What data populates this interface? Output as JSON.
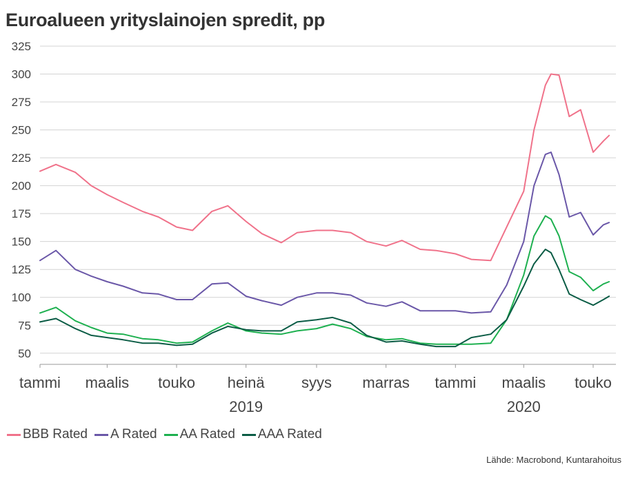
{
  "title": "Euroalueen yrityslainojen spredit, pp",
  "source": "Lähde: Macrobond, Kuntarahoitus",
  "chart_data": {
    "type": "line",
    "title": "Euroalueen yrityslainojen spredit, pp",
    "ylim": [
      40,
      325
    ],
    "yticks": [
      50,
      75,
      100,
      125,
      150,
      175,
      200,
      225,
      250,
      275,
      300,
      325
    ],
    "grid": true,
    "legend_position": "bottom-left",
    "x_tick_labels": [
      {
        "label": "tammi",
        "date": "2019-01"
      },
      {
        "label": "maalis",
        "date": "2019-03"
      },
      {
        "label": "touko",
        "date": "2019-05"
      },
      {
        "label": "heinä",
        "date": "2019-07"
      },
      {
        "label": "syys",
        "date": "2019-09"
      },
      {
        "label": "marras",
        "date": "2019-11"
      },
      {
        "label": "tammi",
        "date": "2020-01"
      },
      {
        "label": "maalis",
        "date": "2020-03"
      },
      {
        "label": "touko",
        "date": "2020-05"
      }
    ],
    "year_labels": [
      {
        "label": "2019",
        "date": "2019-07"
      },
      {
        "label": "2020",
        "date": "2020-03"
      }
    ],
    "x": [
      "2019-01-01",
      "2019-01-15",
      "2019-02-01",
      "2019-02-15",
      "2019-03-01",
      "2019-03-15",
      "2019-04-01",
      "2019-04-15",
      "2019-05-01",
      "2019-05-15",
      "2019-06-01",
      "2019-06-15",
      "2019-07-01",
      "2019-07-15",
      "2019-08-01",
      "2019-08-15",
      "2019-09-01",
      "2019-09-15",
      "2019-10-01",
      "2019-10-15",
      "2019-11-01",
      "2019-11-15",
      "2019-12-01",
      "2019-12-15",
      "2020-01-01",
      "2020-01-15",
      "2020-02-01",
      "2020-02-15",
      "2020-03-01",
      "2020-03-10",
      "2020-03-20",
      "2020-03-25",
      "2020-04-01",
      "2020-04-10",
      "2020-04-20",
      "2020-05-01",
      "2020-05-10",
      "2020-05-15"
    ],
    "series": [
      {
        "name": "BBB Rated",
        "color": "#F0728A",
        "values": [
          213,
          219,
          212,
          200,
          192,
          185,
          177,
          172,
          163,
          160,
          177,
          182,
          168,
          157,
          149,
          158,
          160,
          160,
          158,
          150,
          146,
          151,
          143,
          142,
          139,
          134,
          133,
          163,
          195,
          250,
          290,
          300,
          299,
          262,
          268,
          230,
          240,
          245
        ]
      },
      {
        "name": "A Rated",
        "color": "#6A57A8",
        "values": [
          133,
          142,
          125,
          119,
          114,
          110,
          104,
          103,
          98,
          98,
          112,
          113,
          101,
          97,
          93,
          100,
          104,
          104,
          102,
          95,
          92,
          96,
          88,
          88,
          88,
          86,
          87,
          111,
          150,
          200,
          228,
          230,
          210,
          172,
          176,
          156,
          165,
          167
        ]
      },
      {
        "name": "AA Rated",
        "color": "#1DB04F",
        "values": [
          86,
          91,
          79,
          73,
          68,
          67,
          63,
          62,
          59,
          60,
          70,
          77,
          70,
          68,
          67,
          70,
          72,
          76,
          72,
          65,
          62,
          63,
          59,
          58,
          58,
          58,
          59,
          80,
          120,
          155,
          173,
          170,
          155,
          123,
          118,
          106,
          112,
          114
        ]
      },
      {
        "name": "AAA Rated",
        "color": "#0B5C45",
        "values": [
          78,
          81,
          72,
          66,
          64,
          62,
          59,
          59,
          57,
          58,
          68,
          74,
          71,
          70,
          70,
          78,
          80,
          82,
          77,
          66,
          60,
          61,
          58,
          56,
          56,
          64,
          67,
          80,
          110,
          130,
          143,
          140,
          125,
          103,
          98,
          93,
          98,
          101
        ]
      }
    ]
  }
}
